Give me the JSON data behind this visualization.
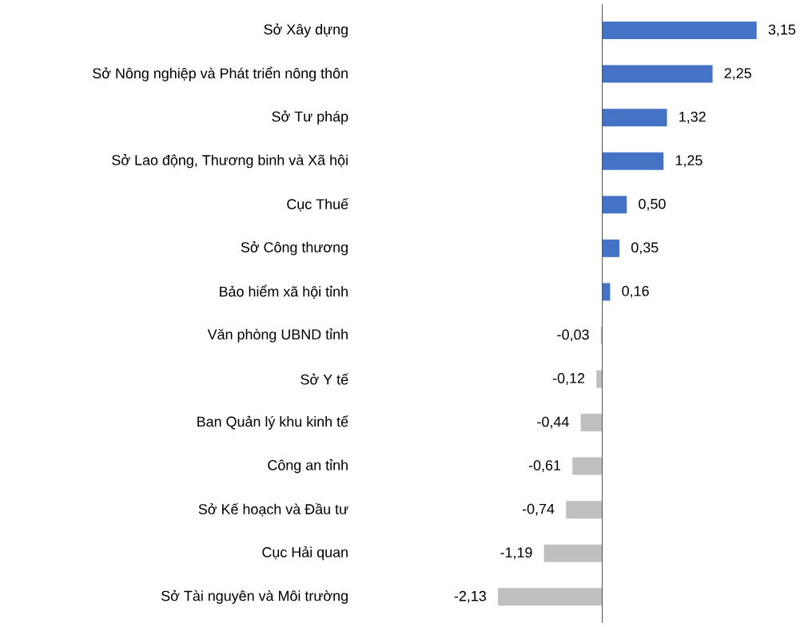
{
  "chart_data": {
    "type": "bar",
    "orientation": "horizontal",
    "categories": [
      "Sở Xây dựng",
      "Sở Nông nghiệp và Phát triển nông thôn",
      "Sở Tư pháp",
      "Sở Lao động, Thương binh và Xã hội",
      "Cục Thuế",
      "Sở Công thương",
      "Bảo hiểm xã hội tỉnh",
      "Văn phòng UBND tỉnh",
      "Sở Y tế",
      "Ban Quản lý khu kinh tế",
      "Công an tỉnh",
      "Sở Kế hoạch và Đầu tư",
      "Cục Hải quan",
      "Sở Tài nguyên và Môi trường"
    ],
    "values": [
      3.15,
      2.25,
      1.32,
      1.25,
      0.5,
      0.35,
      0.16,
      -0.03,
      -0.12,
      -0.44,
      -0.61,
      -0.74,
      -1.19,
      -2.13
    ],
    "value_labels": [
      "3,15",
      "2,25",
      "1,32",
      "1,25",
      "0,50",
      "0,35",
      "0,16",
      "-0,03",
      "-0,12",
      "-0,44",
      "-0,61",
      "-0,74",
      "-1,19",
      "-2,13"
    ],
    "colors": [
      "#4472c4",
      "#4472c4",
      "#4472c4",
      "#4472c4",
      "#4472c4",
      "#4472c4",
      "#4472c4",
      "#bfbfbf",
      "#bfbfbf",
      "#bfbfbf",
      "#bfbfbf",
      "#bfbfbf",
      "#bfbfbf",
      "#bfbfbf"
    ]
  }
}
